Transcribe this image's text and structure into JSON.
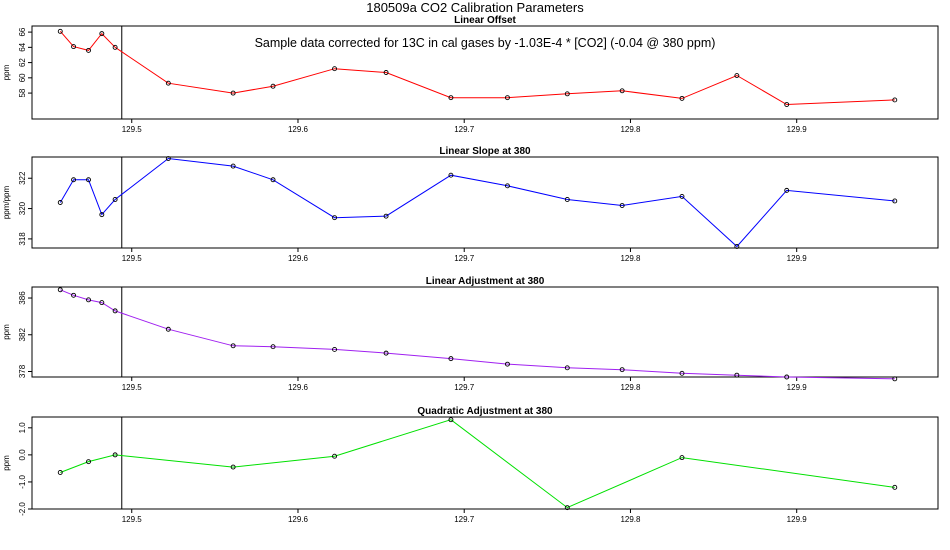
{
  "figure": {
    "title": "180509a   CO2 Calibration Parameters"
  },
  "chart_data": [
    {
      "type": "line",
      "title": "Linear Offset",
      "ylabel": "ppm",
      "annotation": "Sample data corrected for 13C in cal gases by -1.03E-4 * [CO2] (-0.04 @ 380 ppm)",
      "xlim": [
        129.44,
        129.985
      ],
      "ylim": [
        54.6,
        66.8
      ],
      "xticks": [
        129.5,
        129.6,
        129.7,
        129.8,
        129.9
      ],
      "xtick_labels": [
        "129.5",
        "129.6",
        "129.7",
        "129.8",
        "129.9"
      ],
      "yticks": [
        58,
        60,
        62,
        64,
        66
      ],
      "ytick_labels": [
        "58",
        "60",
        "62",
        "64",
        "66"
      ],
      "vline": 129.494,
      "color": "#ff0000",
      "x": [
        129.457,
        129.465,
        129.474,
        129.482,
        129.49,
        129.522,
        129.561,
        129.585,
        129.622,
        129.653,
        129.692,
        129.726,
        129.762,
        129.795,
        129.831,
        129.864,
        129.894,
        129.959
      ],
      "y": [
        66.1,
        64.1,
        63.6,
        65.8,
        64.0,
        59.3,
        58.0,
        58.9,
        61.2,
        60.7,
        57.4,
        57.4,
        57.9,
        58.3,
        57.3,
        60.3,
        56.5,
        57.1
      ]
    },
    {
      "type": "line",
      "title": "Linear Slope at 380",
      "ylabel": "ppm/ppm",
      "xlim": [
        129.44,
        129.985
      ],
      "ylim": [
        317.4,
        323.4
      ],
      "xticks": [
        129.5,
        129.6,
        129.7,
        129.8,
        129.9
      ],
      "xtick_labels": [
        "129.5",
        "129.6",
        "129.7",
        "129.8",
        "129.9"
      ],
      "yticks": [
        318,
        320,
        322
      ],
      "ytick_labels": [
        "318",
        "320",
        "322"
      ],
      "vline": 129.494,
      "color": "#0000ff",
      "x": [
        129.457,
        129.465,
        129.474,
        129.482,
        129.49,
        129.522,
        129.561,
        129.585,
        129.622,
        129.653,
        129.692,
        129.726,
        129.762,
        129.795,
        129.831,
        129.864,
        129.894,
        129.959
      ],
      "y": [
        320.4,
        321.9,
        321.9,
        319.6,
        320.6,
        323.3,
        322.8,
        321.9,
        319.4,
        319.5,
        322.2,
        321.5,
        320.6,
        320.2,
        320.8,
        317.5,
        321.2,
        320.5
      ]
    },
    {
      "type": "line",
      "title": "Linear Adjustment at 380",
      "ylabel": "ppm",
      "xlim": [
        129.44,
        129.985
      ],
      "ylim": [
        377.4,
        387.2
      ],
      "xticks": [
        129.5,
        129.6,
        129.7,
        129.8,
        129.9
      ],
      "xtick_labels": [
        "129.5",
        "129.6",
        "129.7",
        "129.8",
        "129.9"
      ],
      "yticks": [
        378,
        382,
        386
      ],
      "ytick_labels": [
        "378",
        "382",
        "386"
      ],
      "vline": 129.494,
      "color": "#a020f0",
      "x": [
        129.457,
        129.465,
        129.474,
        129.482,
        129.49,
        129.522,
        129.561,
        129.585,
        129.622,
        129.653,
        129.692,
        129.726,
        129.762,
        129.795,
        129.831,
        129.864,
        129.894,
        129.959
      ],
      "y": [
        386.9,
        386.3,
        385.8,
        385.5,
        384.6,
        382.6,
        380.8,
        380.7,
        380.4,
        380.0,
        379.4,
        378.8,
        378.4,
        378.2,
        377.8,
        377.6,
        377.4,
        377.2
      ]
    },
    {
      "type": "line",
      "title": "Quadratic Adjustment at 380",
      "ylabel": "ppm",
      "xlim": [
        129.44,
        129.985
      ],
      "ylim": [
        -2.0,
        1.4
      ],
      "xticks": [
        129.5,
        129.6,
        129.7,
        129.8,
        129.9
      ],
      "xtick_labels": [
        "129.5",
        "129.6",
        "129.7",
        "129.8",
        "129.9"
      ],
      "yticks": [
        -2.0,
        -1.0,
        0.0,
        1.0
      ],
      "ytick_labels": [
        "-2.0",
        "-1.0",
        "0.0",
        "1.0"
      ],
      "vline": 129.494,
      "color": "#00e000",
      "x": [
        129.457,
        129.474,
        129.49,
        129.561,
        129.622,
        129.692,
        129.762,
        129.831,
        129.959
      ],
      "y": [
        -0.65,
        -0.25,
        0.0,
        -0.45,
        -0.05,
        1.3,
        -1.95,
        -0.1,
        -1.2
      ]
    }
  ]
}
